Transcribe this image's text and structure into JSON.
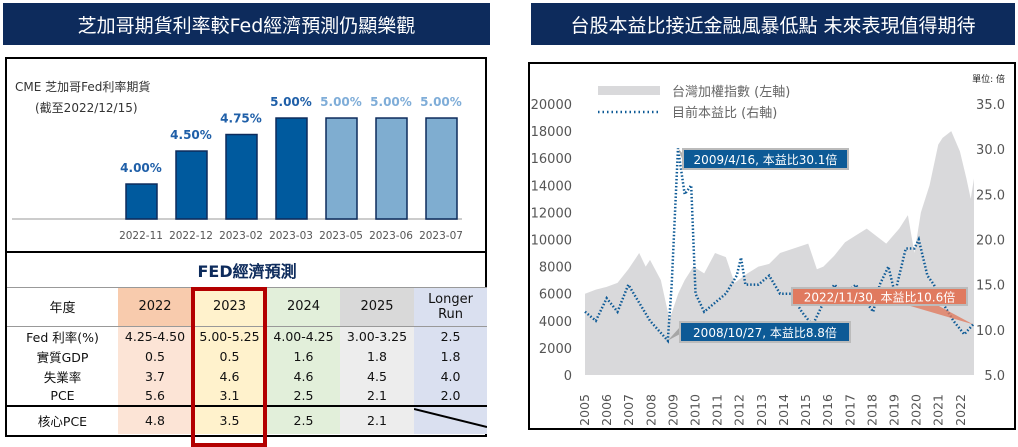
{
  "left": {
    "banner": "芝加哥期貨利率較Fed經濟預測仍顯樂觀",
    "bar_chart_title": "CME 芝加哥Fed利率期貨",
    "bar_chart_subtitle": "(截至2022/12/15)",
    "table": {
      "title": "FED經濟預測",
      "columns": [
        "年度",
        "2022",
        "2023",
        "2024",
        "2025",
        "Longer Run"
      ],
      "rows": [
        [
          "Fed 利率(%)",
          "4.25-4.50",
          "5.00-5.25",
          "4.00-4.25",
          "3.00-3.25",
          "2.5"
        ],
        [
          "實質GDP",
          "0.5",
          "0.5",
          "1.6",
          "1.8",
          "1.8"
        ],
        [
          "失業率",
          "3.7",
          "4.6",
          "4.6",
          "4.5",
          "4.0"
        ],
        [
          "PCE",
          "5.6",
          "3.1",
          "2.5",
          "2.1",
          "2.0"
        ],
        [
          "核心PCE",
          "4.8",
          "3.5",
          "2.5",
          "2.1",
          ""
        ]
      ],
      "highlight_column": "2023",
      "highlight_color": "#b30000"
    }
  },
  "right": {
    "banner": "台股本益比接近金融風暴低點 未來表現值得期待",
    "unit": "單位: 倍"
  },
  "chart_data": [
    {
      "type": "bar",
      "title": "CME 芝加哥Fed利率期貨",
      "subtitle": "(截至2022/12/15)",
      "categories": [
        "2022-11",
        "2022-12",
        "2023-02",
        "2023-03",
        "2023-05",
        "2023-06",
        "2023-07"
      ],
      "values": [
        4.0,
        4.5,
        4.75,
        5.0,
        5.0,
        5.0,
        5.0
      ],
      "labels": [
        "4.00%",
        "4.50%",
        "4.75%",
        "5.00%",
        "5.00%",
        "5.00%",
        "5.00%"
      ],
      "colors": [
        "#005a9e",
        "#005a9e",
        "#005a9e",
        "#005a9e",
        "#7fadd0",
        "#7fadd0",
        "#7fadd0"
      ],
      "label_colors": [
        "#1f5fa8",
        "#1f5fa8",
        "#1f5fa8",
        "#1f5fa8",
        "#7fadd8",
        "#7fadd8",
        "#7fadd8"
      ]
    },
    {
      "type": "area+line",
      "legend": [
        "台灣加權指數 (左軸)",
        "目前本益比 (右軸)"
      ],
      "legend_placement": "top-left",
      "x_ticks": [
        "2005",
        "2006",
        "2007",
        "2008",
        "2009",
        "2010",
        "2011",
        "2012",
        "2013",
        "2014",
        "2015",
        "2016",
        "2017",
        "2018",
        "2019",
        "2020",
        "2021",
        "2022"
      ],
      "y_left": {
        "range": [
          0,
          20000
        ],
        "ticks": [
          "0",
          "2000",
          "4000",
          "6000",
          "8000",
          "10000",
          "12000",
          "14000",
          "16000",
          "18000",
          "20000"
        ]
      },
      "y_right": {
        "range": [
          5,
          35
        ],
        "ticks": [
          "5.0",
          "10.0",
          "15.0",
          "20.0",
          "25.0",
          "30.0",
          "35.0"
        ]
      },
      "index_series": {
        "name": "台灣加權指數 (左軸)",
        "color": "#d9d9db",
        "points": [
          [
            2005,
            6000
          ],
          [
            2005.5,
            6300
          ],
          [
            2006,
            6500
          ],
          [
            2006.5,
            6800
          ],
          [
            2007,
            7800
          ],
          [
            2007.5,
            9000
          ],
          [
            2007.8,
            8000
          ],
          [
            2008,
            8500
          ],
          [
            2008.5,
            7000
          ],
          [
            2008.9,
            4100
          ],
          [
            2009.3,
            6000
          ],
          [
            2009.6,
            7000
          ],
          [
            2010,
            8000
          ],
          [
            2010.5,
            7500
          ],
          [
            2011,
            9000
          ],
          [
            2011.5,
            8700
          ],
          [
            2011.9,
            6800
          ],
          [
            2012.5,
            7500
          ],
          [
            2013,
            8000
          ],
          [
            2013.5,
            8200
          ],
          [
            2014,
            9000
          ],
          [
            2015.3,
            9700
          ],
          [
            2015.7,
            7800
          ],
          [
            2016,
            8000
          ],
          [
            2016.5,
            8800
          ],
          [
            2017,
            9800
          ],
          [
            2017.5,
            10300
          ],
          [
            2018,
            10800
          ],
          [
            2018.9,
            9700
          ],
          [
            2019.5,
            10800
          ],
          [
            2019.9,
            11800
          ],
          [
            2020.2,
            9000
          ],
          [
            2020.5,
            12000
          ],
          [
            2020.9,
            14000
          ],
          [
            2021.3,
            17000
          ],
          [
            2021.5,
            17500
          ],
          [
            2021.9,
            18000
          ],
          [
            2022.3,
            16500
          ],
          [
            2022.6,
            14500
          ],
          [
            2022.8,
            13000
          ],
          [
            2022.95,
            14500
          ]
        ]
      },
      "pe_series": {
        "name": "目前本益比 (右軸)",
        "color": "#0d5a96",
        "points": [
          [
            2005,
            12
          ],
          [
            2005.5,
            11
          ],
          [
            2006,
            13.5
          ],
          [
            2006.5,
            12
          ],
          [
            2007,
            15
          ],
          [
            2007.5,
            13
          ],
          [
            2008,
            11
          ],
          [
            2008.82,
            8.8
          ],
          [
            2009.0,
            15
          ],
          [
            2009.29,
            30.1
          ],
          [
            2009.6,
            25
          ],
          [
            2009.9,
            26
          ],
          [
            2010.1,
            14
          ],
          [
            2010.5,
            12
          ],
          [
            2011,
            13
          ],
          [
            2011.5,
            14
          ],
          [
            2012,
            16
          ],
          [
            2012.2,
            18
          ],
          [
            2012.4,
            15
          ],
          [
            2013,
            15
          ],
          [
            2013.5,
            16
          ],
          [
            2014,
            14
          ],
          [
            2014.5,
            14
          ],
          [
            2015,
            12
          ],
          [
            2015.5,
            10.5
          ],
          [
            2016,
            13
          ],
          [
            2016.5,
            15
          ],
          [
            2017,
            14
          ],
          [
            2017.5,
            15
          ],
          [
            2018,
            13
          ],
          [
            2018.3,
            12
          ],
          [
            2018.6,
            15
          ],
          [
            2019,
            17
          ],
          [
            2019.3,
            14
          ],
          [
            2019.8,
            19
          ],
          [
            2020.2,
            19
          ],
          [
            2020.4,
            20
          ],
          [
            2020.8,
            16
          ],
          [
            2021.1,
            15
          ],
          [
            2021.5,
            13
          ],
          [
            2022,
            11
          ],
          [
            2022.5,
            9.5
          ],
          [
            2022.91,
            10.6
          ]
        ]
      },
      "annotations": [
        {
          "text": "2009/4/16, 本益比30.1倍",
          "x": 2009.29,
          "y": 30.1,
          "color": "#0d5a96"
        },
        {
          "text": "2008/10/27, 本益比8.8倍",
          "x": 2008.82,
          "y": 8.8,
          "color": "#0d5a96"
        },
        {
          "text": "2022/11/30, 本益比10.6倍",
          "x": 2022.91,
          "y": 10.6,
          "color": "#e07a5f"
        }
      ]
    }
  ]
}
